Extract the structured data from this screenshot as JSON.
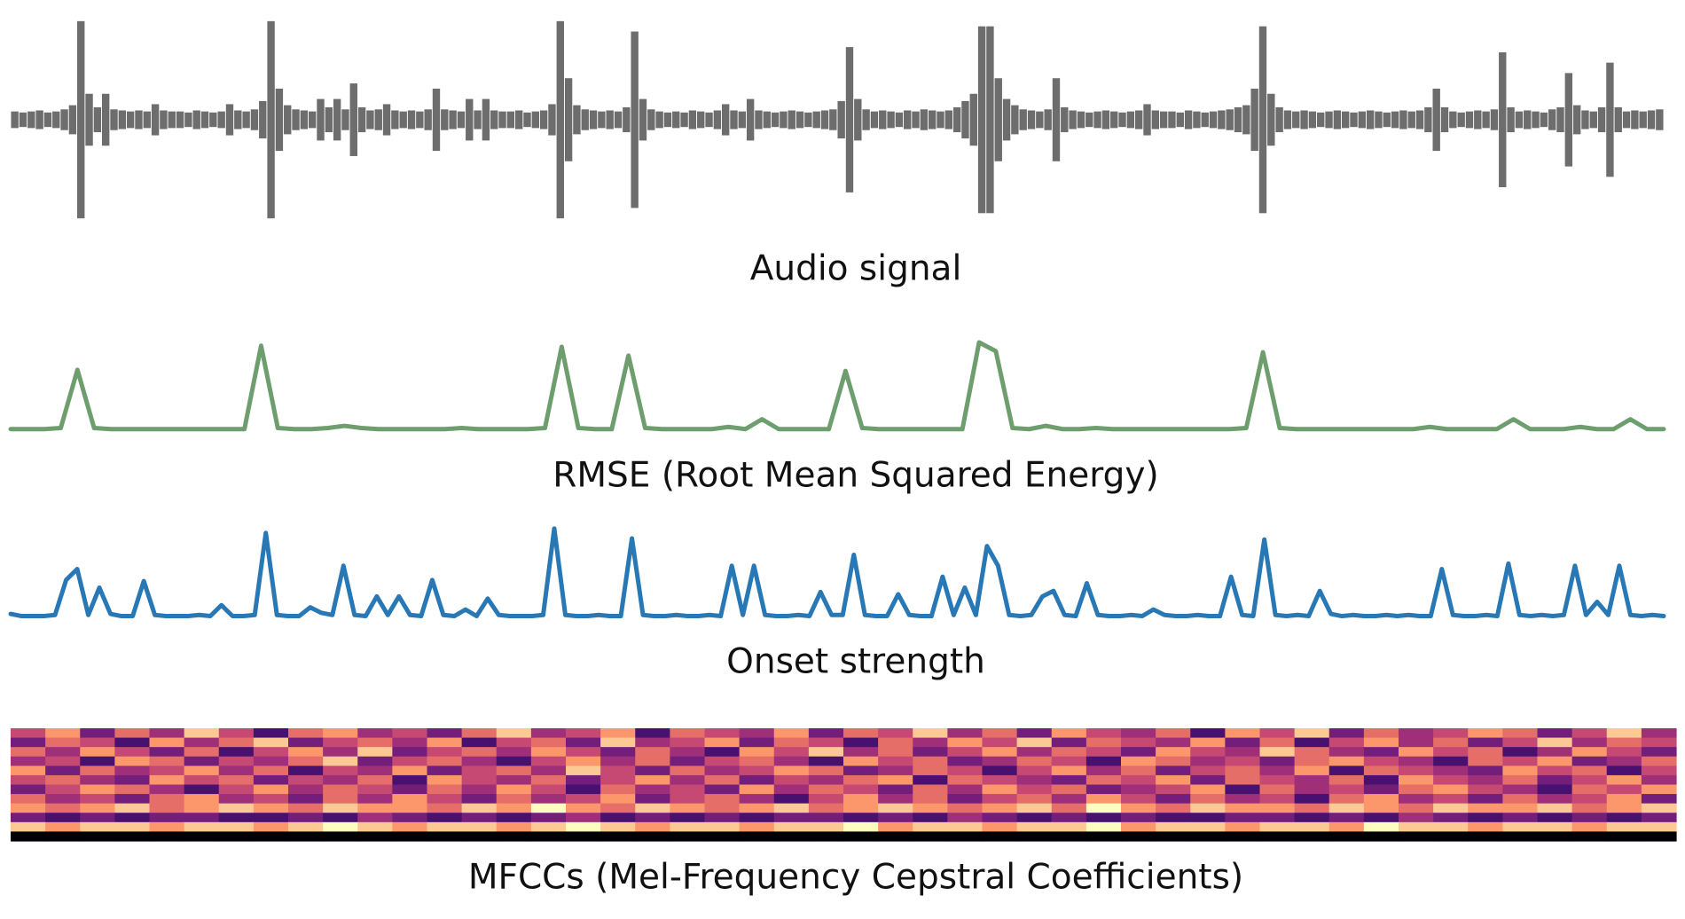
{
  "chart_data": [
    {
      "type": "waveform",
      "title": "Audio signal",
      "color": "#6d6d6d",
      "ylim": [
        0,
        100
      ],
      "values": [
        8,
        7,
        8,
        9,
        7,
        8,
        10,
        14,
        95,
        25,
        12,
        25,
        10,
        9,
        8,
        9,
        8,
        15,
        9,
        8,
        8,
        7,
        9,
        8,
        7,
        8,
        15,
        9,
        8,
        10,
        18,
        95,
        30,
        14,
        10,
        9,
        8,
        20,
        12,
        20,
        10,
        35,
        12,
        9,
        10,
        15,
        9,
        8,
        9,
        8,
        10,
        30,
        10,
        9,
        8,
        20,
        9,
        20,
        9,
        8,
        8,
        9,
        7,
        8,
        9,
        15,
        95,
        40,
        14,
        10,
        9,
        8,
        9,
        8,
        12,
        85,
        20,
        10,
        8,
        7,
        8,
        7,
        9,
        8,
        7,
        9,
        15,
        9,
        8,
        20,
        9,
        8,
        7,
        8,
        9,
        8,
        7,
        8,
        9,
        10,
        18,
        70,
        20,
        10,
        8,
        9,
        8,
        7,
        9,
        8,
        10,
        9,
        8,
        9,
        12,
        18,
        25,
        90,
        90,
        40,
        20,
        14,
        10,
        9,
        8,
        10,
        40,
        12,
        9,
        8,
        7,
        8,
        9,
        8,
        7,
        8,
        9,
        15,
        9,
        8,
        8,
        7,
        9,
        8,
        7,
        8,
        9,
        10,
        12,
        14,
        30,
        90,
        25,
        12,
        9,
        8,
        9,
        8,
        7,
        8,
        9,
        8,
        7,
        8,
        9,
        8,
        7,
        8,
        9,
        8,
        9,
        12,
        30,
        12,
        8,
        7,
        8,
        9,
        8,
        10,
        65,
        12,
        8,
        9,
        8,
        7,
        10,
        12,
        45,
        14,
        9,
        8,
        12,
        55,
        12,
        8,
        9,
        8,
        9,
        10
      ]
    },
    {
      "type": "line",
      "title": "RMSE (Root Mean Squared Energy)",
      "color": "#6e9e6e",
      "ylim": [
        0,
        80
      ],
      "values": [
        1,
        1,
        1,
        2,
        55,
        2,
        1,
        1,
        1,
        1,
        1,
        1,
        1,
        1,
        1,
        77,
        2,
        1,
        1,
        2,
        4,
        2,
        1,
        1,
        1,
        1,
        1,
        2,
        1,
        1,
        1,
        1,
        2,
        76,
        2,
        1,
        1,
        68,
        2,
        1,
        1,
        1,
        1,
        3,
        1,
        10,
        1,
        1,
        1,
        1,
        54,
        2,
        1,
        1,
        1,
        1,
        1,
        1,
        80,
        72,
        2,
        1,
        4,
        1,
        1,
        2,
        1,
        1,
        1,
        1,
        1,
        1,
        1,
        1,
        2,
        71,
        2,
        1,
        1,
        1,
        1,
        1,
        1,
        1,
        1,
        3,
        1,
        1,
        1,
        1,
        10,
        1,
        1,
        1,
        3,
        1,
        1,
        10,
        1,
        1
      ]
    },
    {
      "type": "line",
      "title": "Onset strength",
      "color": "#2878b5",
      "ylim": [
        0,
        90
      ],
      "values": [
        4,
        2,
        2,
        2,
        3,
        35,
        45,
        3,
        28,
        4,
        2,
        2,
        34,
        3,
        2,
        2,
        2,
        3,
        2,
        12,
        2,
        2,
        3,
        78,
        3,
        2,
        2,
        10,
        5,
        3,
        48,
        3,
        2,
        20,
        3,
        20,
        3,
        2,
        35,
        3,
        2,
        8,
        2,
        18,
        3,
        2,
        2,
        2,
        3,
        82,
        3,
        2,
        2,
        3,
        2,
        2,
        73,
        3,
        2,
        2,
        3,
        2,
        2,
        3,
        2,
        48,
        3,
        48,
        3,
        2,
        2,
        3,
        2,
        24,
        3,
        3,
        58,
        3,
        2,
        2,
        22,
        3,
        2,
        2,
        38,
        3,
        28,
        3,
        66,
        48,
        3,
        2,
        3,
        20,
        25,
        3,
        2,
        32,
        3,
        2,
        2,
        3,
        2,
        8,
        3,
        2,
        2,
        3,
        2,
        2,
        38,
        3,
        2,
        72,
        3,
        2,
        3,
        2,
        25,
        4,
        2,
        3,
        2,
        2,
        3,
        2,
        3,
        2,
        2,
        45,
        3,
        2,
        2,
        3,
        2,
        50,
        3,
        2,
        3,
        2,
        3,
        48,
        3,
        15,
        3,
        48,
        3,
        2,
        3,
        2
      ]
    },
    {
      "type": "heatmap",
      "title": "MFCCs (Mel-Frequency Cepstral Coefficients)",
      "colormap": "magma",
      "zlim": [
        0,
        9
      ],
      "values": [
        [
          5,
          7,
          3,
          6,
          4,
          8,
          5,
          2,
          6,
          7,
          4,
          5,
          3,
          6,
          8,
          4,
          5,
          7,
          2,
          6,
          5,
          4,
          7,
          3,
          6,
          5,
          8,
          4,
          6,
          3,
          7,
          5,
          4,
          6,
          2,
          7,
          5,
          8,
          3,
          6,
          4,
          5,
          7,
          6,
          3,
          5,
          8,
          4
        ],
        [
          3,
          6,
          5,
          2,
          7,
          4,
          6,
          8,
          3,
          5,
          6,
          4,
          7,
          2,
          5,
          6,
          3,
          8,
          4,
          5,
          7,
          3,
          6,
          5,
          2,
          6,
          4,
          7,
          5,
          8,
          3,
          6,
          5,
          4,
          7,
          3,
          6,
          2,
          5,
          7,
          4,
          6,
          3,
          5,
          8,
          4,
          6,
          5
        ],
        [
          6,
          4,
          7,
          5,
          3,
          6,
          2,
          5,
          7,
          4,
          8,
          3,
          5,
          6,
          4,
          7,
          5,
          3,
          6,
          4,
          2,
          7,
          5,
          8,
          4,
          6,
          3,
          5,
          7,
          4,
          6,
          5,
          3,
          7,
          5,
          4,
          8,
          6,
          4,
          3,
          7,
          5,
          6,
          2,
          4,
          7,
          5,
          3
        ],
        [
          4,
          5,
          2,
          7,
          6,
          3,
          5,
          4,
          6,
          8,
          3,
          5,
          6,
          4,
          2,
          5,
          7,
          4,
          6,
          3,
          5,
          6,
          4,
          2,
          7,
          5,
          6,
          3,
          4,
          6,
          5,
          2,
          7,
          6,
          4,
          5,
          3,
          6,
          7,
          5,
          4,
          2,
          6,
          5,
          7,
          3,
          4,
          6
        ],
        [
          7,
          3,
          6,
          4,
          5,
          7,
          4,
          6,
          2,
          5,
          4,
          7,
          3,
          5,
          6,
          4,
          8,
          5,
          3,
          6,
          4,
          5,
          7,
          6,
          3,
          4,
          6,
          5,
          2,
          5,
          7,
          4,
          6,
          3,
          5,
          6,
          4,
          7,
          2,
          6,
          5,
          4,
          3,
          7,
          5,
          6,
          2,
          5
        ],
        [
          5,
          6,
          4,
          3,
          7,
          5,
          6,
          3,
          5,
          4,
          6,
          2,
          7,
          5,
          4,
          6,
          3,
          5,
          7,
          4,
          6,
          3,
          5,
          4,
          6,
          7,
          2,
          6,
          5,
          4,
          3,
          6,
          5,
          7,
          3,
          6,
          5,
          4,
          6,
          2,
          7,
          5,
          4,
          6,
          3,
          5,
          7,
          4
        ],
        [
          3,
          5,
          7,
          6,
          4,
          2,
          5,
          7,
          4,
          6,
          5,
          3,
          6,
          4,
          7,
          5,
          2,
          6,
          4,
          5,
          3,
          7,
          4,
          6,
          5,
          3,
          6,
          4,
          7,
          5,
          6,
          3,
          4,
          5,
          7,
          2,
          6,
          4,
          5,
          3,
          6,
          7,
          5,
          4,
          2,
          6,
          5,
          7
        ],
        [
          6,
          4,
          5,
          3,
          6,
          7,
          4,
          5,
          3,
          6,
          4,
          7,
          5,
          3,
          6,
          4,
          5,
          7,
          3,
          5,
          6,
          4,
          2,
          5,
          7,
          4,
          6,
          3,
          5,
          6,
          4,
          7,
          5,
          3,
          6,
          4,
          5,
          2,
          6,
          7,
          4,
          5,
          3,
          6,
          4,
          5,
          7,
          3
        ],
        [
          7,
          6,
          7,
          8,
          6,
          7,
          8,
          7,
          6,
          8,
          7,
          7,
          6,
          8,
          7,
          9,
          7,
          6,
          8,
          7,
          6,
          7,
          8,
          6,
          7,
          8,
          7,
          6,
          7,
          8,
          6,
          9,
          7,
          6,
          8,
          7,
          7,
          6,
          8,
          7,
          6,
          8,
          7,
          7,
          8,
          6,
          7,
          8
        ],
        [
          3,
          2,
          3,
          2,
          3,
          3,
          2,
          2,
          3,
          2,
          4,
          3,
          2,
          3,
          2,
          3,
          4,
          2,
          3,
          2,
          3,
          2,
          3,
          3,
          2,
          3,
          2,
          4,
          3,
          2,
          3,
          2,
          3,
          2,
          2,
          3,
          3,
          2,
          3,
          2,
          4,
          3,
          2,
          3,
          2,
          3,
          2,
          3
        ],
        [
          8,
          7,
          8,
          8,
          7,
          8,
          8,
          7,
          8,
          9,
          8,
          7,
          8,
          8,
          7,
          8,
          9,
          8,
          7,
          8,
          8,
          7,
          8,
          8,
          9,
          7,
          8,
          8,
          7,
          8,
          8,
          9,
          7,
          8,
          8,
          7,
          8,
          8,
          7,
          9,
          8,
          8,
          7,
          8,
          8,
          7,
          8,
          8
        ],
        [
          0,
          0,
          0,
          0,
          0,
          0,
          0,
          0,
          0,
          0,
          0,
          0,
          0,
          0,
          0,
          0,
          0,
          0,
          0,
          0,
          0,
          0,
          0,
          0,
          0,
          0,
          0,
          0,
          0,
          0,
          0,
          0,
          0,
          0,
          0,
          0,
          0,
          0,
          0,
          0,
          0,
          0,
          0,
          0,
          0,
          0,
          0,
          0
        ]
      ]
    }
  ]
}
